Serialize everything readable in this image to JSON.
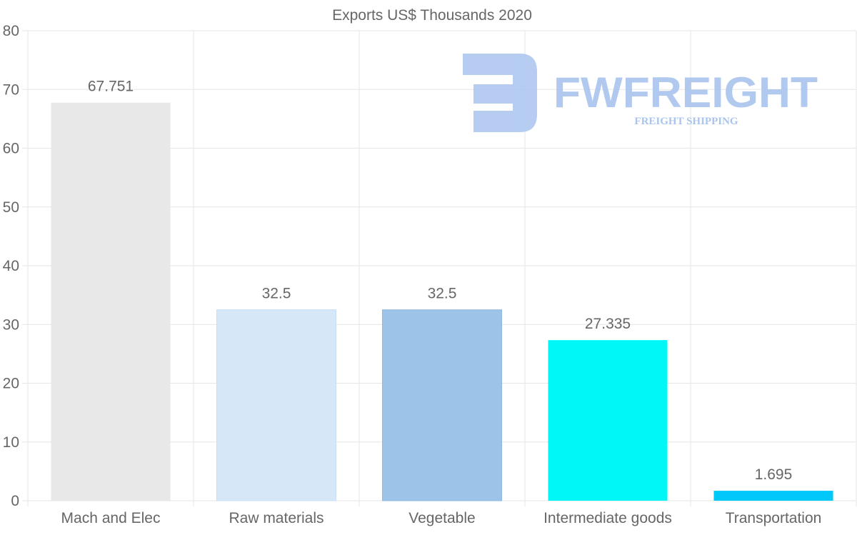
{
  "chart_data": {
    "type": "bar",
    "title": "Exports US$ Thousands 2020",
    "categories": [
      "Mach and Elec",
      "Raw materials",
      "Vegetable",
      "Intermediate goods",
      "Transportation"
    ],
    "values": [
      67.751,
      32.5,
      32.5,
      27.335,
      1.695
    ],
    "data_labels": [
      "67.751",
      "32.5",
      "32.5",
      "27.335",
      "1.695"
    ],
    "colors": [
      "#e8e8e8",
      "#d6e8f8",
      "#9dc4e8",
      "#00f7f7",
      "#00c8f8"
    ],
    "ylim": [
      0,
      80
    ],
    "yticks": [
      0,
      10,
      20,
      30,
      40,
      50,
      60,
      70,
      80
    ],
    "ytick_labels": [
      "0",
      "10",
      "20",
      "30",
      "40",
      "50",
      "60",
      "70",
      "80"
    ],
    "xlabel": "",
    "ylabel": "",
    "grid": true,
    "legend": "none"
  },
  "watermark": {
    "brand": "FWFREIGHT",
    "tagline": "FREIGHT SHIPPING",
    "color": "#a9c4ee"
  }
}
